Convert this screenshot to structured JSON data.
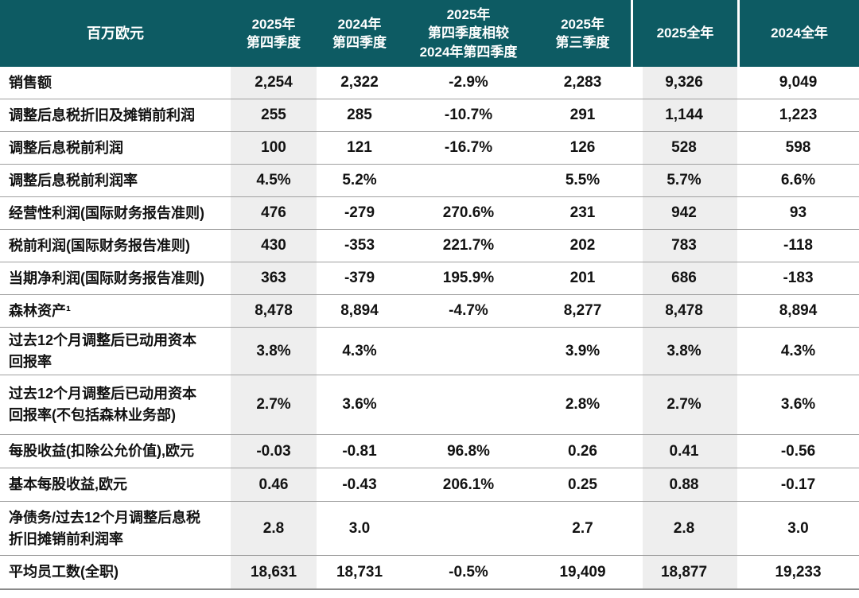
{
  "theme": {
    "header_bg": "#0d5b63",
    "header_text": "#ffffff",
    "stripe_bg": "#eeeeee",
    "row_border": "#a0a0a0",
    "bottom_border": "#8a8a8a",
    "text": "#121212",
    "page_bg": "#ffffff"
  },
  "table": {
    "unit_label": "百万欧元",
    "columns": [
      {
        "id": "q4_2025",
        "label": "2025年\n第四季度",
        "highlight": true
      },
      {
        "id": "q4_2024",
        "label": "2024年\n第四季度",
        "highlight": false
      },
      {
        "id": "q4_2025_vs_q4_2024",
        "label": "2025年\n第四季度相较\n2024年第四季度",
        "highlight": false
      },
      {
        "id": "q3_2025",
        "label": "2025年\n第三季度",
        "highlight": false
      },
      {
        "id": "fy_2025",
        "label": "2025全年",
        "highlight": true
      },
      {
        "id": "fy_2024",
        "label": "2024全年",
        "highlight": false
      }
    ],
    "rows": [
      {
        "label": "销售额",
        "values": [
          "2,254",
          "2,322",
          "-2.9%",
          "2,283",
          "9,326",
          "9,049"
        ]
      },
      {
        "label": "调整后息税折旧及摊销前利润",
        "values": [
          "255",
          "285",
          "-10.7%",
          "291",
          "1,144",
          "1,223"
        ]
      },
      {
        "label": "调整后息税前利润",
        "values": [
          "100",
          "121",
          "-16.7%",
          "126",
          "528",
          "598"
        ]
      },
      {
        "label": "调整后息税前利润率",
        "values": [
          "4.5%",
          "5.2%",
          "",
          "5.5%",
          "5.7%",
          "6.6%"
        ]
      },
      {
        "label": "经营性利润(国际财务报告准则)",
        "values": [
          "476",
          "-279",
          "270.6%",
          "231",
          "942",
          "93"
        ]
      },
      {
        "label": "税前利润(国际财务报告准则)",
        "values": [
          "430",
          "-353",
          "221.7%",
          "202",
          "783",
          "-118"
        ]
      },
      {
        "label": "当期净利润(国际财务报告准则)",
        "values": [
          "363",
          "-379",
          "195.9%",
          "201",
          "686",
          "-183"
        ]
      },
      {
        "label": "森林资产¹",
        "values": [
          "8,478",
          "8,894",
          "-4.7%",
          "8,277",
          "8,478",
          "8,894"
        ]
      },
      {
        "label": "过去12个月调整后已动用资本\n回报率",
        "values": [
          "3.8%",
          "4.3%",
          "",
          "3.9%",
          "3.8%",
          "4.3%"
        ]
      },
      {
        "label": "过去12个月调整后已动用资本\n回报率(不包括森林业务部)",
        "values": [
          "2.7%",
          "3.6%",
          "",
          "2.8%",
          "2.7%",
          "3.6%"
        ]
      },
      {
        "label": "每股收益(扣除公允价值),欧元",
        "values": [
          "-0.03",
          "-0.81",
          "96.8%",
          "0.26",
          "0.41",
          "-0.56"
        ]
      },
      {
        "label": "基本每股收益,欧元",
        "values": [
          "0.46",
          "-0.43",
          "206.1%",
          "0.25",
          "0.88",
          "-0.17"
        ]
      },
      {
        "label": "净债务/过去12个月调整后息税\n折旧摊销前利润率",
        "values": [
          "2.8",
          "3.0",
          "",
          "2.7",
          "2.8",
          "3.0"
        ]
      },
      {
        "label": "平均员工数(全职)",
        "values": [
          "18,631",
          "18,731",
          "-0.5%",
          "19,409",
          "18,877",
          "19,233"
        ]
      }
    ]
  }
}
